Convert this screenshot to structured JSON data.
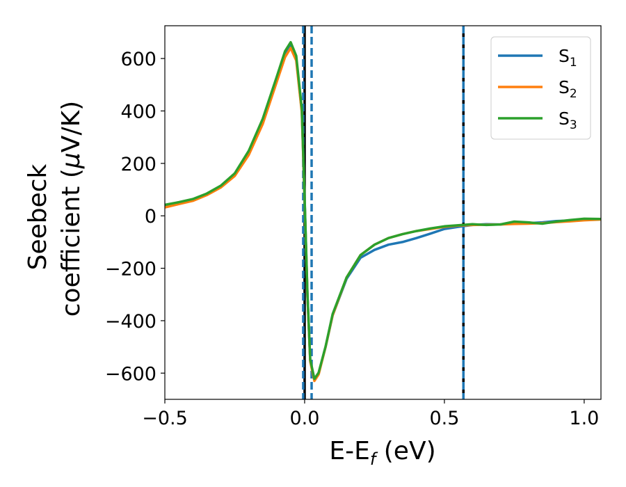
{
  "chart_data": {
    "type": "line",
    "xlabel": {
      "main": "E-E",
      "sub": "f",
      "unit": " (eV)"
    },
    "ylabel": {
      "line1": "Seebeck",
      "line2_text": "coefficient  (",
      "line2_mu": "μ",
      "line2_unit": "V/K)"
    },
    "xlim": [
      -0.5,
      1.06
    ],
    "ylim": [
      -700,
      725
    ],
    "xticks": [
      -0.5,
      0.0,
      0.5,
      1.0
    ],
    "xtick_labels": [
      "−0.5",
      "0.0",
      "0.5",
      "1.0"
    ],
    "yticks": [
      -600,
      -400,
      -200,
      0,
      200,
      400,
      600
    ],
    "ytick_labels": [
      "−600",
      "−400",
      "−200",
      "0",
      "200",
      "400",
      "600"
    ],
    "grid": false,
    "legend_position": "top-right",
    "series": [
      {
        "name": "S",
        "sub": "1",
        "color": "#1f77b4",
        "points": [
          [
            -0.5,
            35
          ],
          [
            -0.45,
            48
          ],
          [
            -0.4,
            60
          ],
          [
            -0.35,
            82
          ],
          [
            -0.3,
            112
          ],
          [
            -0.25,
            158
          ],
          [
            -0.2,
            240
          ],
          [
            -0.15,
            360
          ],
          [
            -0.1,
            520
          ],
          [
            -0.07,
            615
          ],
          [
            -0.05,
            650
          ],
          [
            -0.03,
            600
          ],
          [
            -0.01,
            400
          ],
          [
            0.0,
            60
          ],
          [
            0.01,
            -300
          ],
          [
            0.02,
            -550
          ],
          [
            0.035,
            -625
          ],
          [
            0.05,
            -600
          ],
          [
            0.075,
            -500
          ],
          [
            0.1,
            -380
          ],
          [
            0.15,
            -240
          ],
          [
            0.2,
            -160
          ],
          [
            0.25,
            -130
          ],
          [
            0.3,
            -110
          ],
          [
            0.35,
            -100
          ],
          [
            0.4,
            -85
          ],
          [
            0.45,
            -68
          ],
          [
            0.5,
            -50
          ],
          [
            0.55,
            -42
          ],
          [
            0.6,
            -35
          ],
          [
            0.65,
            -32
          ],
          [
            0.7,
            -33
          ],
          [
            0.75,
            -27
          ],
          [
            0.8,
            -28
          ],
          [
            0.85,
            -25
          ],
          [
            0.9,
            -20
          ],
          [
            0.95,
            -18
          ],
          [
            1.0,
            -13
          ],
          [
            1.06,
            -12
          ]
        ]
      },
      {
        "name": "S",
        "sub": "2",
        "color": "#ff7f0e",
        "points": [
          [
            -0.5,
            32
          ],
          [
            -0.45,
            45
          ],
          [
            -0.4,
            57
          ],
          [
            -0.35,
            79
          ],
          [
            -0.3,
            108
          ],
          [
            -0.25,
            152
          ],
          [
            -0.2,
            232
          ],
          [
            -0.15,
            350
          ],
          [
            -0.1,
            510
          ],
          [
            -0.07,
            605
          ],
          [
            -0.05,
            640
          ],
          [
            -0.03,
            592
          ],
          [
            -0.01,
            395
          ],
          [
            0.0,
            55
          ],
          [
            0.01,
            -305
          ],
          [
            0.02,
            -555
          ],
          [
            0.035,
            -630
          ],
          [
            0.05,
            -605
          ],
          [
            0.075,
            -500
          ],
          [
            0.1,
            -380
          ],
          [
            0.15,
            -235
          ],
          [
            0.2,
            -150
          ],
          [
            0.25,
            -110
          ],
          [
            0.3,
            -85
          ],
          [
            0.35,
            -70
          ],
          [
            0.4,
            -58
          ],
          [
            0.45,
            -50
          ],
          [
            0.5,
            -42
          ],
          [
            0.55,
            -37
          ],
          [
            0.6,
            -35
          ],
          [
            0.65,
            -34
          ],
          [
            0.7,
            -33
          ],
          [
            0.75,
            -31
          ],
          [
            0.8,
            -30
          ],
          [
            0.85,
            -28
          ],
          [
            0.9,
            -24
          ],
          [
            0.95,
            -21
          ],
          [
            1.0,
            -17
          ],
          [
            1.06,
            -14
          ]
        ]
      },
      {
        "name": "S",
        "sub": "3",
        "color": "#2ca02c",
        "points": [
          [
            -0.5,
            42
          ],
          [
            -0.45,
            52
          ],
          [
            -0.4,
            64
          ],
          [
            -0.35,
            85
          ],
          [
            -0.3,
            115
          ],
          [
            -0.25,
            162
          ],
          [
            -0.2,
            248
          ],
          [
            -0.15,
            370
          ],
          [
            -0.1,
            530
          ],
          [
            -0.07,
            628
          ],
          [
            -0.05,
            662
          ],
          [
            -0.03,
            610
          ],
          [
            -0.01,
            410
          ],
          [
            0.0,
            65
          ],
          [
            0.01,
            -295
          ],
          [
            0.02,
            -548
          ],
          [
            0.035,
            -622
          ],
          [
            0.05,
            -598
          ],
          [
            0.075,
            -498
          ],
          [
            0.1,
            -375
          ],
          [
            0.15,
            -235
          ],
          [
            0.2,
            -150
          ],
          [
            0.25,
            -110
          ],
          [
            0.3,
            -85
          ],
          [
            0.35,
            -70
          ],
          [
            0.4,
            -58
          ],
          [
            0.45,
            -48
          ],
          [
            0.5,
            -40
          ],
          [
            0.55,
            -36
          ],
          [
            0.6,
            -32
          ],
          [
            0.65,
            -35
          ],
          [
            0.7,
            -33
          ],
          [
            0.75,
            -22
          ],
          [
            0.8,
            -25
          ],
          [
            0.85,
            -30
          ],
          [
            0.9,
            -22
          ],
          [
            0.95,
            -16
          ],
          [
            1.0,
            -11
          ],
          [
            1.06,
            -12
          ]
        ]
      }
    ],
    "vlines": [
      {
        "x": 0.0,
        "color": "#000000",
        "style": "solid"
      },
      {
        "x": -0.005,
        "color": "#1f77b4",
        "style": "dashed"
      },
      {
        "x": 0.025,
        "color": "#1f77b4",
        "style": "dashed"
      },
      {
        "x": 0.568,
        "color": "#000000",
        "style": "solid"
      },
      {
        "x": 0.568,
        "color": "#1f77b4",
        "style": "dashed"
      }
    ]
  }
}
